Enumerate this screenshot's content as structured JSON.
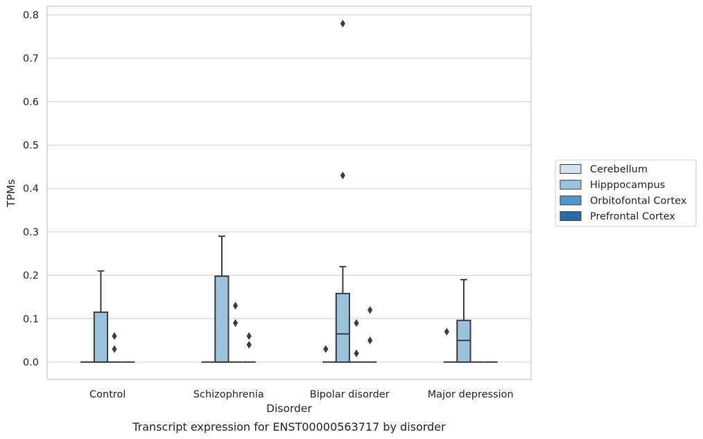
{
  "chart_data": {
    "type": "box",
    "caption": "Transcript expression for ENST00000563717 by disorder",
    "xlabel": "Disorder",
    "ylabel": "TPMs",
    "ylim": [
      -0.04,
      0.82
    ],
    "yticks": [
      0.0,
      0.1,
      0.2,
      0.3,
      0.4,
      0.5,
      0.6,
      0.7,
      0.8
    ],
    "ytick_labels": [
      "0.0",
      "0.1",
      "0.2",
      "0.3",
      "0.4",
      "0.5",
      "0.6",
      "0.7",
      "0.8"
    ],
    "grid": true,
    "legend_position": "right",
    "categories": [
      "Control",
      "Schizophrenia",
      "Bipolar disorder",
      "Major depression"
    ],
    "series": [
      {
        "name": "Cerebellum",
        "color": "#d0e1f2",
        "boxes": [
          {
            "category": "Control",
            "q1": 0,
            "median": 0,
            "q3": 0,
            "whisker_low": 0,
            "whisker_high": 0,
            "outliers": []
          },
          {
            "category": "Schizophrenia",
            "q1": 0,
            "median": 0,
            "q3": 0,
            "whisker_low": 0,
            "whisker_high": 0,
            "outliers": []
          },
          {
            "category": "Bipolar disorder",
            "q1": 0,
            "median": 0,
            "q3": 0,
            "whisker_low": 0,
            "whisker_high": 0,
            "outliers": []
          },
          {
            "category": "Major depression",
            "q1": 0,
            "median": 0,
            "q3": 0,
            "whisker_low": 0,
            "whisker_high": 0,
            "outliers": []
          }
        ]
      },
      {
        "name": "Hipppocampus",
        "color": "#9ac2dc",
        "boxes": [
          {
            "category": "Control",
            "q1": 0,
            "median": 0,
            "q3": 0.115,
            "whisker_low": 0,
            "whisker_high": 0.21,
            "outliers": []
          },
          {
            "category": "Schizophrenia",
            "q1": 0,
            "median": 0,
            "q3": 0.198,
            "whisker_low": 0,
            "whisker_high": 0.29,
            "outliers": []
          },
          {
            "category": "Bipolar disorder",
            "q1": 0,
            "median": 0.065,
            "q3": 0.158,
            "whisker_low": 0,
            "whisker_high": 0.22,
            "outliers": [
              0.43,
              0.78
            ]
          },
          {
            "category": "Major depression",
            "q1": 0,
            "median": 0.05,
            "q3": 0.096,
            "whisker_low": 0,
            "whisker_high": 0.19,
            "outliers": []
          }
        ]
      },
      {
        "name": "Orbitofontal Cortex",
        "color": "#5596c9",
        "boxes": [
          {
            "category": "Control",
            "q1": 0,
            "median": 0,
            "q3": 0,
            "whisker_low": 0,
            "whisker_high": 0,
            "outliers": [
              0.06,
              0.03
            ]
          },
          {
            "category": "Schizophrenia",
            "q1": 0,
            "median": 0,
            "q3": 0,
            "whisker_low": 0,
            "whisker_high": 0,
            "outliers": [
              0.13,
              0.09
            ]
          },
          {
            "category": "Bipolar disorder",
            "q1": 0,
            "median": 0,
            "q3": 0,
            "whisker_low": 0,
            "whisker_high": 0,
            "outliers": [
              0.09,
              0.02
            ]
          },
          {
            "category": "Major depression",
            "q1": 0,
            "median": 0,
            "q3": 0,
            "whisker_low": 0,
            "whisker_high": 0,
            "outliers": []
          }
        ]
      },
      {
        "name": "Prefrontal Cortex",
        "color": "#2b6ba8",
        "boxes": [
          {
            "category": "Control",
            "q1": 0,
            "median": 0,
            "q3": 0,
            "whisker_low": 0,
            "whisker_high": 0,
            "outliers": []
          },
          {
            "category": "Schizophrenia",
            "q1": 0,
            "median": 0,
            "q3": 0,
            "whisker_low": 0,
            "whisker_high": 0,
            "outliers": [
              0.06,
              0.04
            ]
          },
          {
            "category": "Bipolar disorder",
            "q1": 0,
            "median": 0,
            "q3": 0,
            "whisker_low": 0,
            "whisker_high": 0,
            "outliers": [
              0.12,
              0.05
            ]
          },
          {
            "category": "Major depression",
            "q1": 0,
            "median": 0,
            "q3": 0,
            "whisker_low": 0,
            "whisker_high": 0,
            "outliers": []
          }
        ]
      }
    ],
    "extra_outliers": [
      {
        "category": "Bipolar disorder",
        "series": "Cerebellum",
        "values": [
          0.03
        ]
      },
      {
        "category": "Major depression",
        "series": "Cerebellum",
        "values": [
          0.07
        ]
      }
    ]
  }
}
